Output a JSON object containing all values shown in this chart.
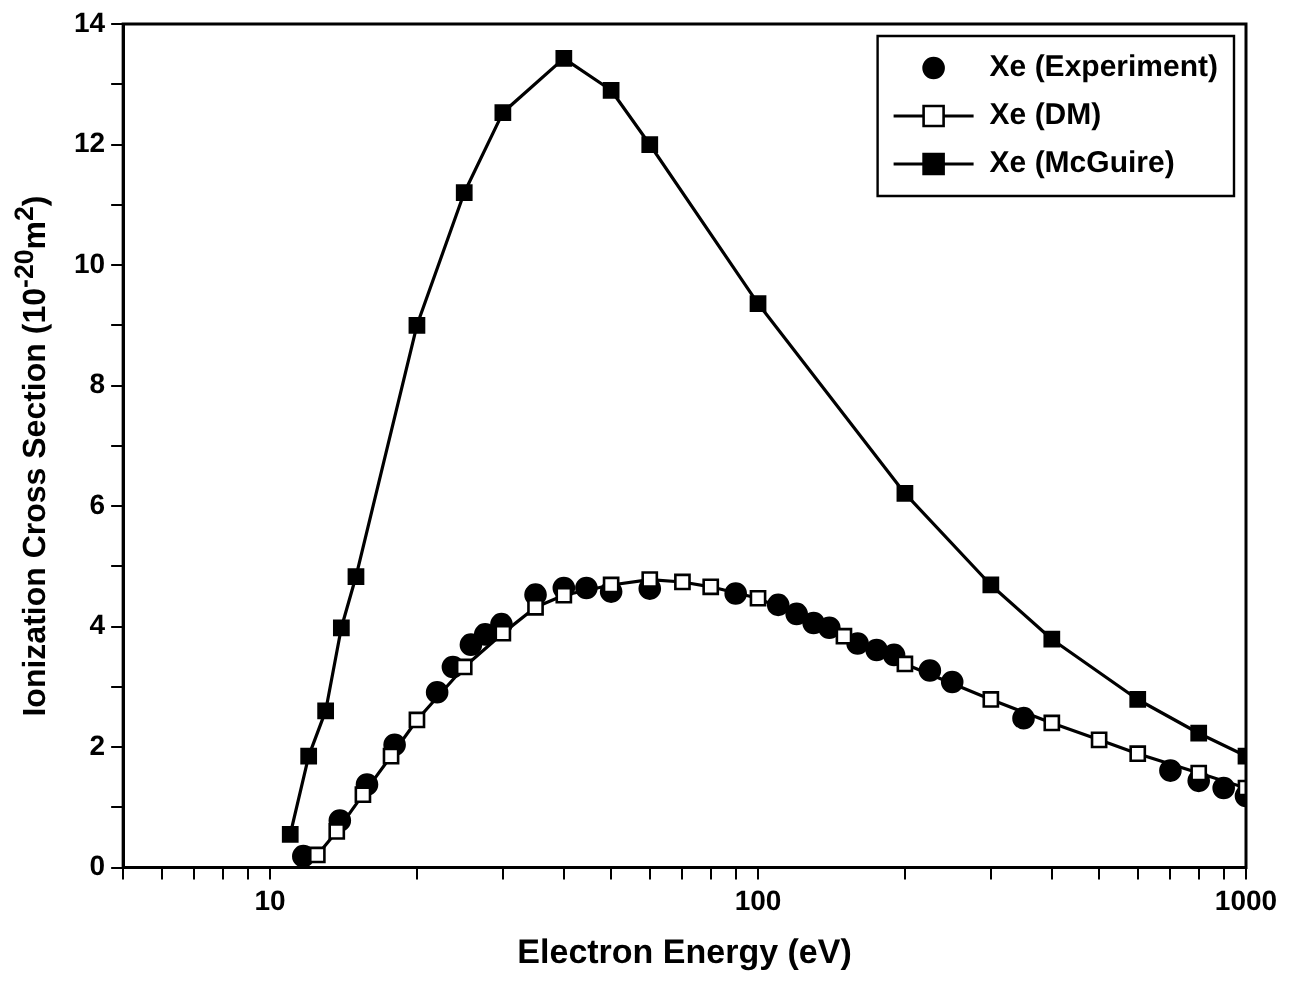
{
  "chart_data": {
    "type": "line",
    "xlabel": "Electron Energy (eV)",
    "ylabel": "Ionization Cross Section (10$^{-20}$m$^{2}$)",
    "log": "x",
    "grid": false,
    "legend": "top right",
    "xlim": [
      5,
      1000
    ],
    "ylim": [
      0,
      14
    ],
    "xticks": [
      {
        "value": 5,
        "label": null
      },
      {
        "value": 6,
        "label": null
      },
      {
        "value": 7,
        "label": null
      },
      {
        "value": 8,
        "label": null
      },
      {
        "value": 9,
        "label": null
      },
      10,
      {
        "value": 20,
        "label": null
      },
      {
        "value": 30,
        "label": null
      },
      {
        "value": 40,
        "label": null
      },
      {
        "value": 50,
        "label": null
      },
      {
        "value": 60,
        "label": null
      },
      {
        "value": 70,
        "label": null
      },
      {
        "value": 80,
        "label": null
      },
      {
        "value": 90,
        "label": null
      },
      100,
      {
        "value": 200,
        "label": null
      },
      {
        "value": 300,
        "label": null
      },
      {
        "value": 400,
        "label": null
      },
      {
        "value": 500,
        "label": null
      },
      {
        "value": 600,
        "label": null
      },
      {
        "value": 700,
        "label": null
      },
      {
        "value": 800,
        "label": null
      },
      {
        "value": 900,
        "label": null
      },
      1000
    ],
    "yticks": [
      0,
      {
        "value": 1,
        "label": null
      },
      2,
      {
        "value": 3,
        "label": null
      },
      4,
      {
        "value": 5,
        "label": null
      },
      6,
      {
        "value": 7,
        "label": null
      },
      8,
      {
        "value": 9,
        "label": null
      },
      10,
      {
        "value": 11,
        "label": null
      },
      12,
      {
        "value": 13,
        "label": null
      },
      14
    ],
    "series": [
      {
        "name": "Xe (Experiment)",
        "type": "scatter",
        "marker": "circle",
        "color": "#000000",
        "x": [
          11.7,
          13.9,
          15.8,
          18,
          22,
          23.7,
          25.8,
          27.6,
          29.8,
          35,
          40,
          44.5,
          50,
          60,
          70,
          90,
          110,
          120,
          130,
          140,
          160,
          175,
          190,
          225,
          250,
          350,
          400,
          500,
          600,
          700,
          800,
          900,
          1000
        ],
        "values": [
          0.19,
          0.78,
          1.38,
          2.04,
          2.91,
          3.33,
          3.7,
          3.87,
          4.04,
          4.53,
          4.64,
          4.64,
          4.58,
          4.63,
          null,
          4.55,
          4.36,
          4.21,
          4.06,
          3.98,
          3.72,
          3.61,
          3.53,
          3.27,
          3.08,
          2.48,
          null,
          null,
          null,
          1.61,
          1.44,
          1.32,
          1.19
        ]
      },
      {
        "name": "Xe (DM)",
        "type": "line",
        "marker": "square",
        "color": "#000000",
        "x": [
          12.5,
          13.7,
          15.5,
          17.7,
          20,
          25,
          30,
          35,
          40,
          50,
          60,
          70,
          80,
          100,
          150,
          200,
          300,
          400,
          500,
          600,
          800,
          1000
        ],
        "values": [
          0.21,
          0.6,
          1.21,
          1.85,
          2.45,
          3.33,
          3.89,
          4.32,
          4.52,
          4.69,
          4.78,
          4.74,
          4.66,
          4.47,
          3.84,
          3.38,
          2.79,
          2.4,
          2.12,
          1.89,
          1.57,
          1.32
        ]
      },
      {
        "name": "Xe (McGuire)",
        "type": "line",
        "marker": "square",
        "color": "#000000",
        "x": [
          11,
          12,
          13,
          14,
          15,
          20,
          25,
          30,
          40,
          50,
          60,
          100,
          200,
          300,
          400,
          600,
          800,
          1000
        ],
        "values": [
          0.55,
          1.85,
          2.6,
          3.98,
          4.83,
          9.0,
          11.2,
          12.53,
          13.43,
          12.9,
          12.0,
          9.36,
          6.21,
          4.69,
          3.79,
          2.79,
          2.23,
          1.85
        ]
      }
    ]
  }
}
